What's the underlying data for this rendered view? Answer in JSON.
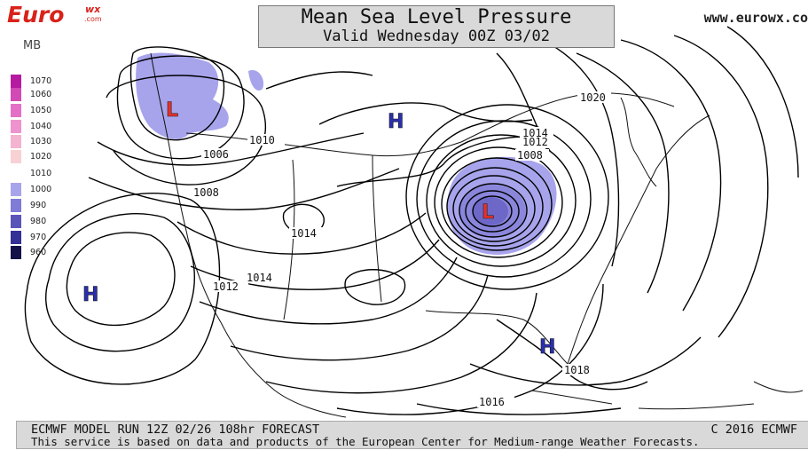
{
  "title": {
    "main": "Mean Sea Level Pressure",
    "valid": "Valid Wednesday 00Z 03/02"
  },
  "logo": {
    "text": "Euro",
    "sup": "wx",
    "sub": ".com"
  },
  "site": "www.eurowx.co",
  "legend": {
    "unit": "MB",
    "items": [
      {
        "label": "1070",
        "color": "#b61aa0"
      },
      {
        "label": "1060",
        "color": "#d24ab6"
      },
      {
        "label": "1050",
        "color": "#e46fc6"
      },
      {
        "label": "1040",
        "color": "#ee93ce"
      },
      {
        "label": "1030",
        "color": "#f4b3cf"
      },
      {
        "label": "1020",
        "color": "#f9d1d5"
      },
      {
        "label": "1010",
        "color": "#ffffff"
      },
      {
        "label": "1000",
        "color": "#a7a4ec"
      },
      {
        "label": "990",
        "color": "#7f7bd6"
      },
      {
        "label": "980",
        "color": "#5a55b8"
      },
      {
        "label": "970",
        "color": "#333096"
      },
      {
        "label": "960",
        "color": "#141048"
      }
    ]
  },
  "centers": [
    {
      "type": "L",
      "color": "#e8302a"
    },
    {
      "type": "H",
      "color": "#2b2fae"
    },
    {
      "type": "H",
      "color": "#2b2fae"
    },
    {
      "type": "L",
      "color": "#e8302a"
    },
    {
      "type": "H",
      "color": "#2b2fae"
    }
  ],
  "contour_labels": [
    "1020",
    "1014",
    "1012",
    "1008",
    "1010",
    "1006",
    "1008",
    "1014",
    "1012",
    "1014",
    "1018",
    "1016"
  ],
  "footer": {
    "run": "ECMWF MODEL RUN 12Z 02/26 108hr FORECAST",
    "copyright": "C 2016 ECMWF",
    "note": "This service is based on data and products of the European Center for Medium-range Weather Forecasts."
  }
}
